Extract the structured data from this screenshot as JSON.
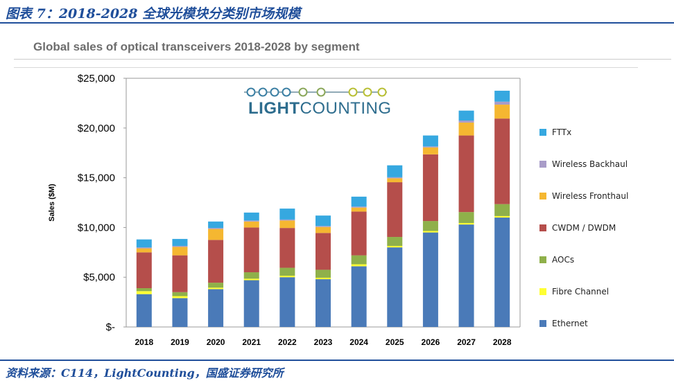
{
  "figure": {
    "title": "图表 7：2018-2028 全球光模块分类别市场规模",
    "source": "资料来源：C114，LightCounting，国盛证券研究所"
  },
  "logo": {
    "text_light": "LIGHT",
    "text_bold": "COUNTING"
  },
  "chart_data": {
    "type": "bar",
    "stacked": true,
    "title": "Global sales of optical transceivers 2018-2028 by segment",
    "xlabel": "",
    "ylabel": "Sales ($M)",
    "ylim": [
      0,
      25000
    ],
    "yticks": [
      0,
      5000,
      10000,
      15000,
      20000,
      25000
    ],
    "ytick_labels": [
      "$-",
      "$5,000",
      "$10,000",
      "$15,000",
      "$20,000",
      "$25,000"
    ],
    "grid": false,
    "legend_position": "right",
    "categories": [
      "2018",
      "2019",
      "2020",
      "2021",
      "2022",
      "2023",
      "2024",
      "2025",
      "2026",
      "2027",
      "2028"
    ],
    "series": [
      {
        "name": "Ethernet",
        "color": "#4a7ab8",
        "values": [
          3300,
          2900,
          3800,
          4700,
          5000,
          4800,
          6100,
          8000,
          9500,
          10300,
          11000
        ]
      },
      {
        "name": "Fibre Channel",
        "color": "#ffff33",
        "values": [
          300,
          200,
          150,
          150,
          150,
          150,
          200,
          150,
          150,
          150,
          150
        ]
      },
      {
        "name": "AOCs",
        "color": "#8fb04a",
        "values": [
          300,
          400,
          500,
          650,
          800,
          800,
          900,
          900,
          1000,
          1100,
          1200
        ]
      },
      {
        "name": "CWDM / DWDM",
        "color": "#b54e4b",
        "values": [
          3600,
          3700,
          4300,
          4500,
          4000,
          3700,
          4400,
          5500,
          6700,
          7700,
          8600
        ]
      },
      {
        "name": "Wireless Fronthaul",
        "color": "#f5b731",
        "values": [
          400,
          850,
          1100,
          600,
          750,
          600,
          400,
          400,
          700,
          1300,
          1400
        ]
      },
      {
        "name": "Wireless Backhaul",
        "color": "#a89cc8",
        "values": [
          100,
          100,
          100,
          100,
          100,
          100,
          100,
          100,
          100,
          200,
          300
        ]
      },
      {
        "name": "FTTx",
        "color": "#36a8e0",
        "values": [
          800,
          700,
          650,
          800,
          1100,
          1050,
          1000,
          1200,
          1100,
          1000,
          1100
        ]
      }
    ]
  }
}
